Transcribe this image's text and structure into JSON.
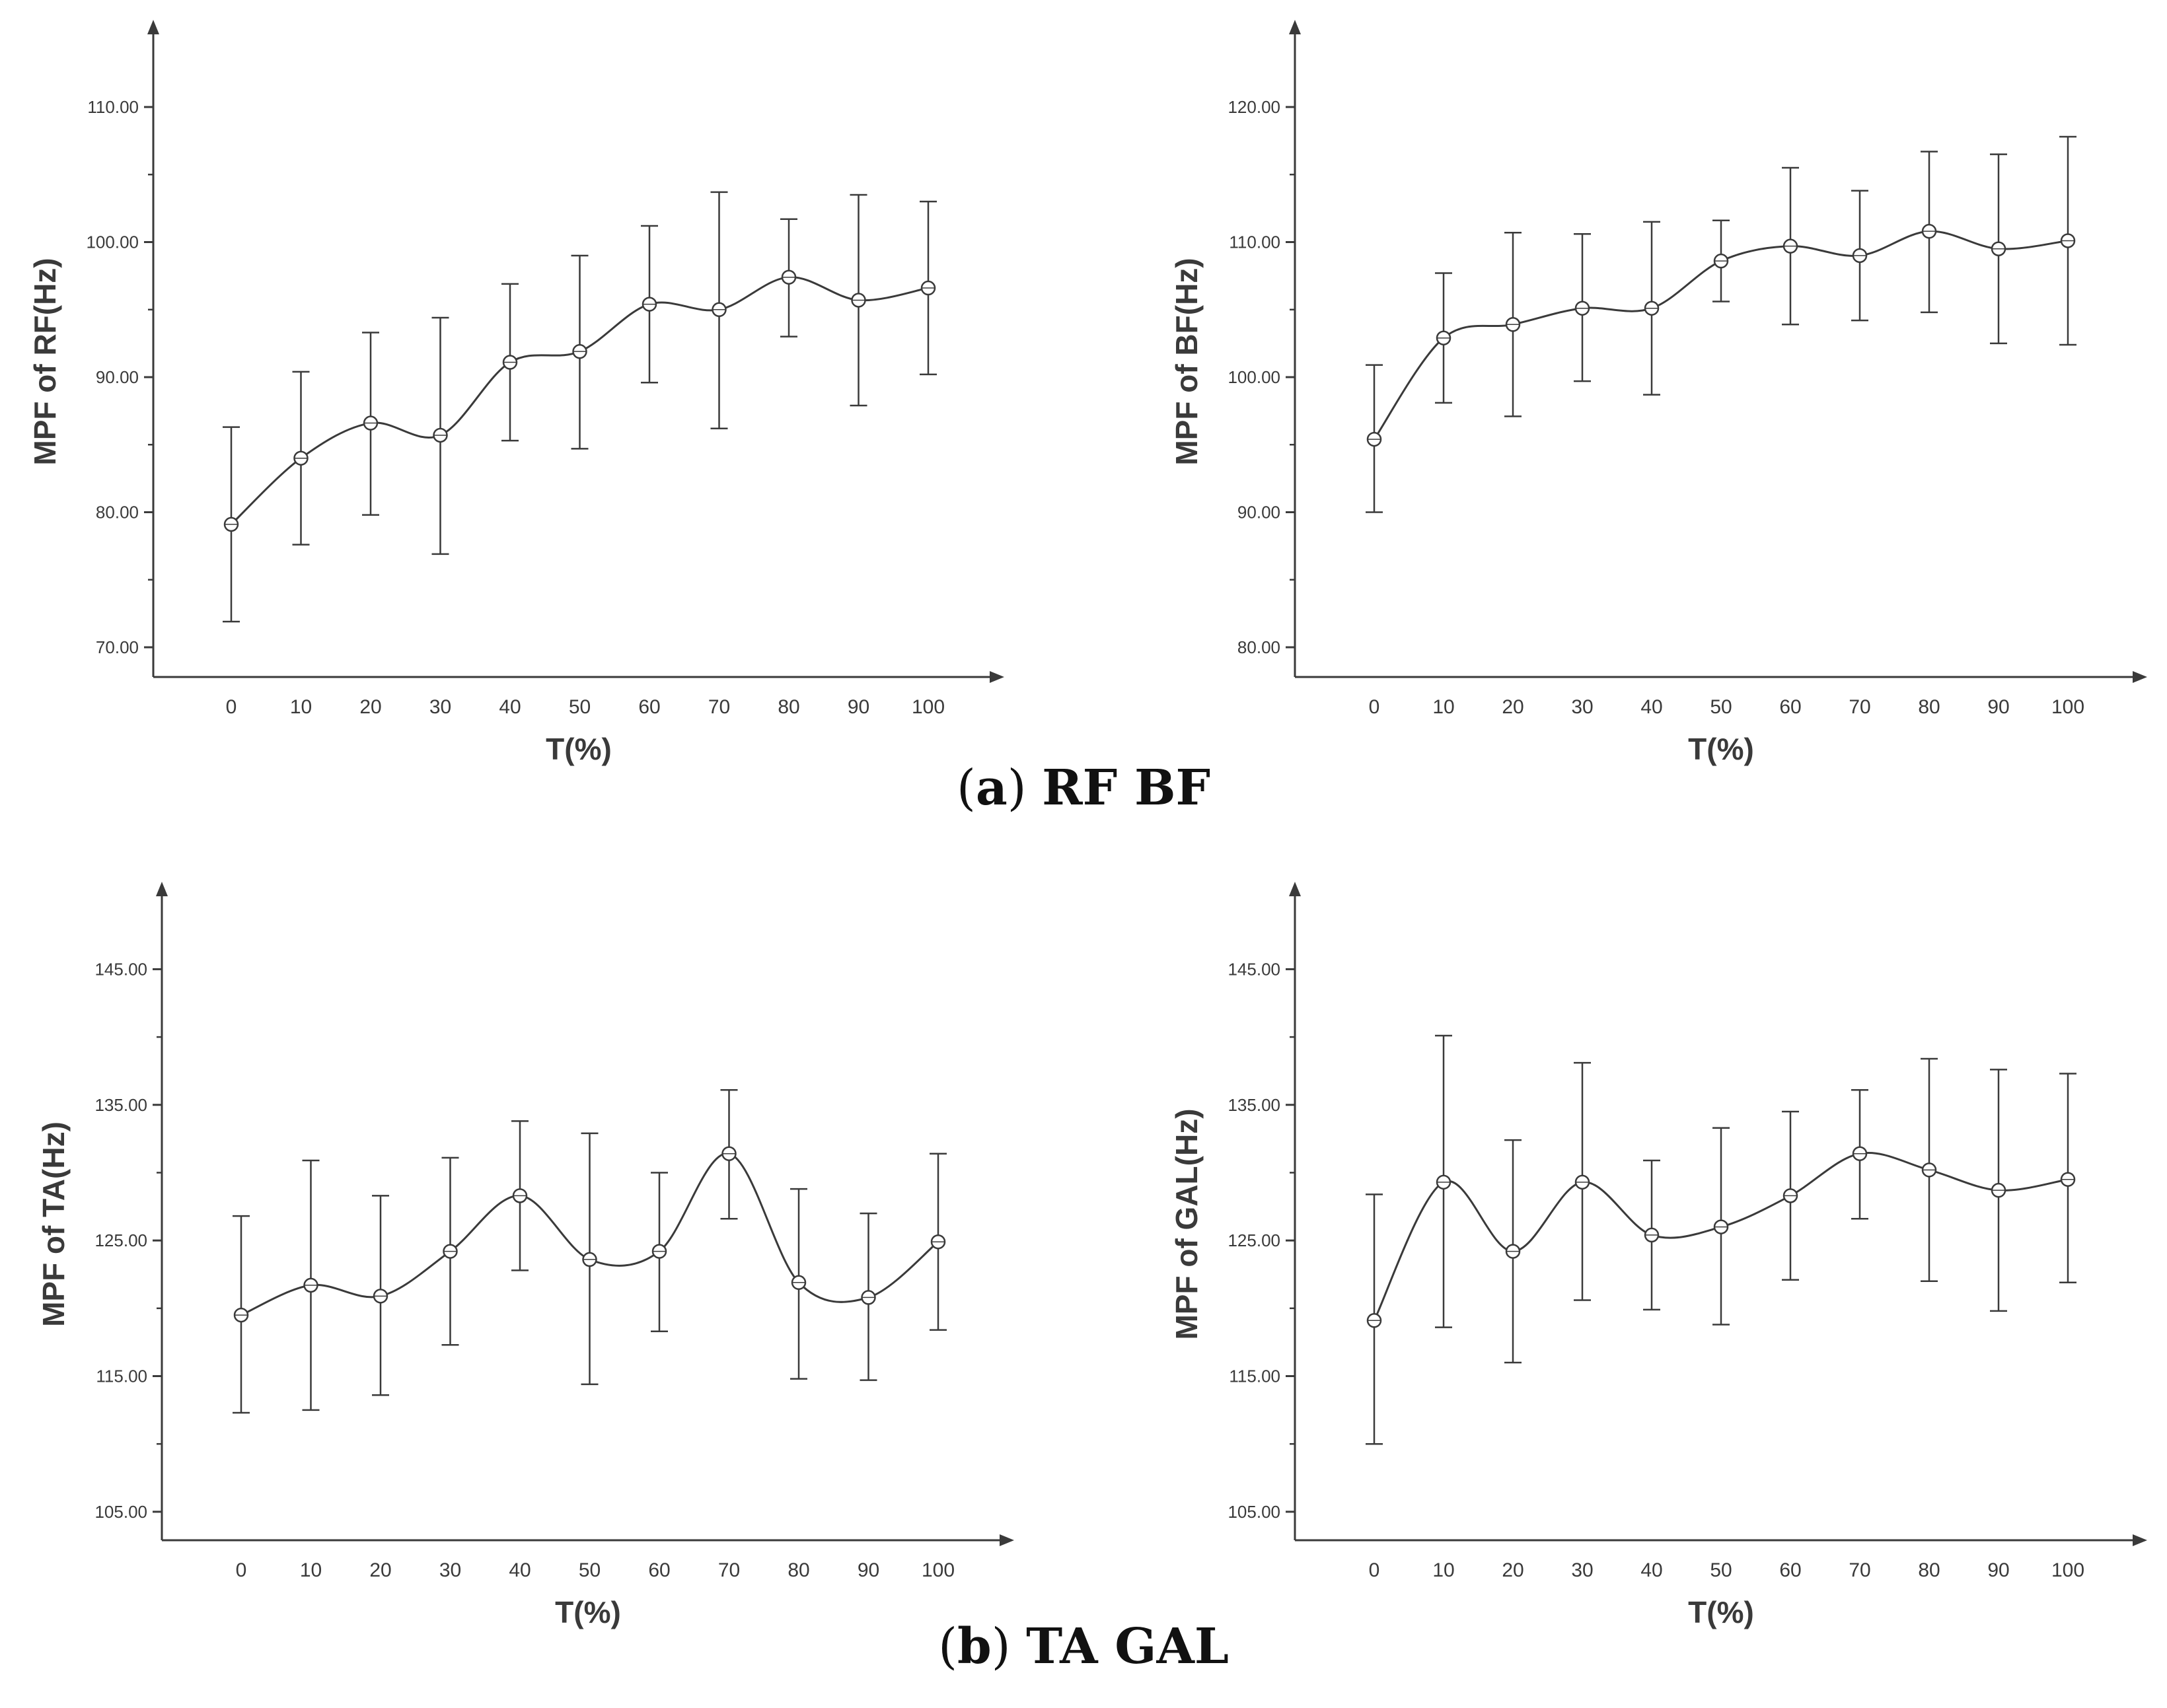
{
  "colors": {
    "ink": "#3a3a3a",
    "background": "#ffffff"
  },
  "captions": {
    "a": {
      "paren_open": "(",
      "letter": "a",
      "paren_close": ")",
      "text": "RF BF"
    },
    "b": {
      "paren_open": "(",
      "letter": "b",
      "paren_close": ")",
      "text": "TA GAL"
    }
  },
  "chart_data": [
    {
      "type": "line",
      "id": "rf",
      "title": "",
      "xlabel": "T(%)",
      "ylabel": "MPF of RF(Hz)",
      "x": [
        0,
        10,
        20,
        30,
        40,
        50,
        60,
        70,
        80,
        90,
        100
      ],
      "x_tick_labels": [
        "0",
        "10",
        "20",
        "30",
        "40",
        "50",
        "60",
        "70",
        "80",
        "90",
        "100"
      ],
      "y_ticks": [
        70,
        80,
        90,
        100,
        110
      ],
      "y_tick_labels": [
        "70.00",
        "80.00",
        "90.00",
        "100.00",
        "110.00"
      ],
      "ylim": [
        67.8,
        114.5
      ],
      "series": [
        {
          "name": "MPF of RF",
          "values": [
            79.1,
            84.0,
            86.6,
            85.7,
            91.1,
            91.9,
            95.4,
            95.0,
            97.4,
            95.7,
            96.6
          ],
          "error_low": [
            71.9,
            77.6,
            79.8,
            76.9,
            85.3,
            84.7,
            89.6,
            86.2,
            93.0,
            87.9,
            90.2
          ],
          "error_high": [
            86.3,
            90.4,
            93.3,
            94.4,
            96.9,
            99.0,
            101.2,
            103.7,
            101.7,
            103.5,
            103.0
          ]
        }
      ]
    },
    {
      "type": "line",
      "id": "bf",
      "title": "",
      "xlabel": "T(%)",
      "ylabel": "MPF of BF(Hz)",
      "x": [
        0,
        10,
        20,
        30,
        40,
        50,
        60,
        70,
        80,
        90,
        100
      ],
      "x_tick_labels": [
        "0",
        "10",
        "20",
        "30",
        "40",
        "50",
        "60",
        "70",
        "80",
        "90",
        "100"
      ],
      "y_ticks": [
        80,
        90,
        100,
        110,
        120
      ],
      "y_tick_labels": [
        "80.00",
        "90.00",
        "100.00",
        "110.00",
        "120.00"
      ],
      "ylim": [
        77.8,
        124.5
      ],
      "series": [
        {
          "name": "MPF of BF",
          "values": [
            95.4,
            102.9,
            103.9,
            105.1,
            105.1,
            108.6,
            109.7,
            109.0,
            110.8,
            109.5,
            110.1
          ],
          "error_low": [
            90.0,
            98.1,
            97.1,
            99.7,
            98.7,
            105.6,
            103.9,
            104.2,
            104.8,
            102.5,
            102.4
          ],
          "error_high": [
            100.9,
            107.7,
            110.7,
            110.6,
            111.5,
            111.6,
            115.5,
            113.8,
            116.7,
            116.5,
            117.8
          ]
        }
      ]
    },
    {
      "type": "line",
      "id": "ta",
      "title": "",
      "xlabel": "T(%)",
      "ylabel": "MPF of TA(Hz)",
      "x": [
        0,
        10,
        20,
        30,
        40,
        50,
        60,
        70,
        80,
        90,
        100
      ],
      "x_tick_labels": [
        "0",
        "10",
        "20",
        "30",
        "40",
        "50",
        "60",
        "70",
        "80",
        "90",
        "100"
      ],
      "y_ticks": [
        105,
        115,
        125,
        135,
        145
      ],
      "y_tick_labels": [
        "105.00",
        "115.00",
        "125.00",
        "135.00",
        "145.00"
      ],
      "ylim": [
        102.9,
        149.5
      ],
      "series": [
        {
          "name": "MPF of TA",
          "values": [
            119.5,
            121.7,
            120.9,
            124.2,
            128.3,
            123.6,
            124.2,
            131.4,
            121.9,
            120.8,
            124.9
          ],
          "error_low": [
            112.3,
            112.5,
            113.6,
            117.3,
            122.8,
            114.4,
            118.3,
            126.6,
            114.8,
            114.7,
            118.4
          ],
          "error_high": [
            126.8,
            130.9,
            128.3,
            131.1,
            133.8,
            132.9,
            130.0,
            136.1,
            128.8,
            127.0,
            131.4
          ]
        }
      ]
    },
    {
      "type": "line",
      "id": "gal",
      "title": "",
      "xlabel": "T(%)",
      "ylabel": "MPF of GAL(Hz)",
      "x": [
        0,
        10,
        20,
        30,
        40,
        50,
        60,
        70,
        80,
        90,
        100
      ],
      "x_tick_labels": [
        "0",
        "10",
        "20",
        "30",
        "40",
        "50",
        "60",
        "70",
        "80",
        "90",
        "100"
      ],
      "y_ticks": [
        105,
        115,
        125,
        135,
        145
      ],
      "y_tick_labels": [
        "105.00",
        "115.00",
        "125.00",
        "135.00",
        "145.00"
      ],
      "ylim": [
        102.9,
        149.5
      ],
      "series": [
        {
          "name": "MPF of GAL",
          "values": [
            119.1,
            129.3,
            124.2,
            129.3,
            125.4,
            126.0,
            128.3,
            131.4,
            130.2,
            128.7,
            129.5
          ],
          "error_low": [
            110.0,
            118.6,
            116.0,
            120.6,
            119.9,
            118.8,
            122.1,
            126.6,
            122.0,
            119.8,
            121.9
          ],
          "error_high": [
            128.4,
            140.1,
            132.4,
            138.1,
            130.9,
            133.3,
            134.5,
            136.1,
            138.4,
            137.6,
            137.3
          ]
        }
      ]
    }
  ]
}
